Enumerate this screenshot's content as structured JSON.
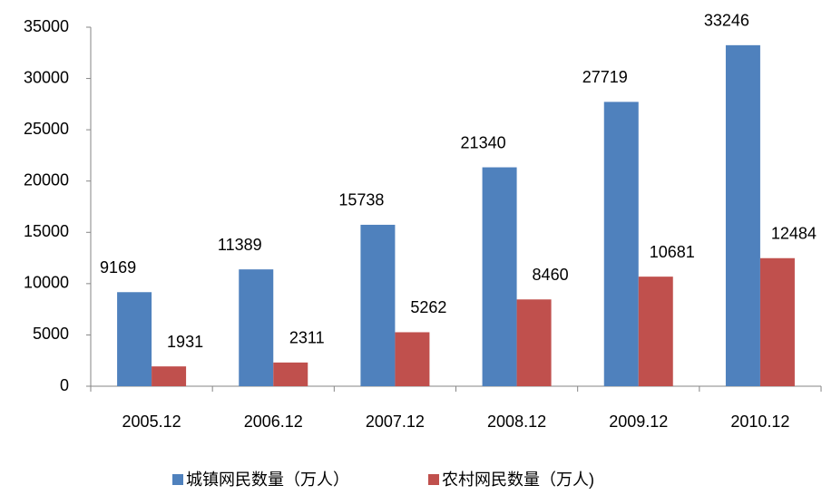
{
  "chart_data": {
    "type": "bar",
    "categories": [
      "2005.12",
      "2006.12",
      "2007.12",
      "2008.12",
      "2009.12",
      "2010.12"
    ],
    "series": [
      {
        "name": "城镇网民数量（万人）",
        "color": "#4f81bd",
        "values": [
          9169,
          11389,
          15738,
          21340,
          27719,
          33246
        ]
      },
      {
        "name": "农村网民数量（万人)",
        "color": "#c0504d",
        "values": [
          1931,
          2311,
          5262,
          8460,
          10681,
          12484
        ]
      }
    ],
    "ylim": [
      0,
      35000
    ],
    "yticks": [
      0,
      5000,
      10000,
      15000,
      20000,
      25000,
      30000,
      35000
    ],
    "grid": false,
    "legend": "bottom"
  }
}
